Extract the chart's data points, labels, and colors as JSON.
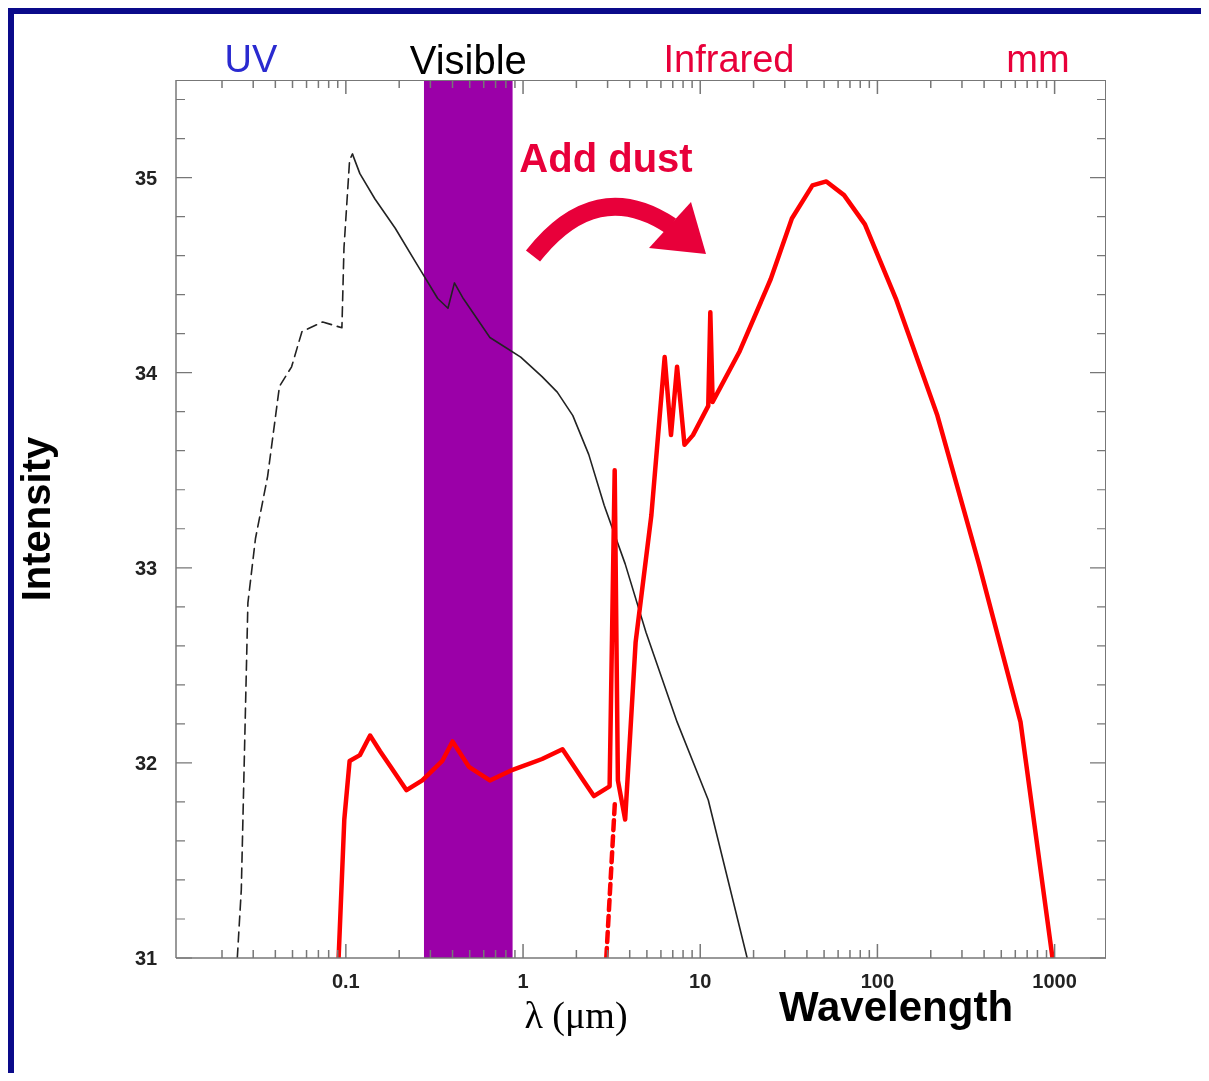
{
  "chart_data": {
    "type": "line",
    "xlabel": "λ (μm)",
    "ylabel": "Intensity",
    "log": "x",
    "xlim": [
      0.011,
      1950
    ],
    "ylim": [
      31,
      35.5
    ],
    "xticks": [
      {
        "value": 0.02,
        "label": null
      },
      {
        "value": 0.03,
        "label": null
      },
      {
        "value": 0.04,
        "label": null
      },
      {
        "value": 0.05,
        "label": null
      },
      {
        "value": 0.06,
        "label": null
      },
      {
        "value": 0.07,
        "label": null
      },
      {
        "value": 0.08,
        "label": null
      },
      {
        "value": 0.09,
        "label": null
      },
      0.1,
      {
        "value": 0.2,
        "label": null
      },
      {
        "value": 0.3,
        "label": null
      },
      {
        "value": 0.4,
        "label": null
      },
      {
        "value": 0.5,
        "label": null
      },
      {
        "value": 0.6,
        "label": null
      },
      {
        "value": 0.7,
        "label": null
      },
      {
        "value": 0.8,
        "label": null
      },
      {
        "value": 0.9,
        "label": null
      },
      1,
      {
        "value": 2,
        "label": null
      },
      {
        "value": 3,
        "label": null
      },
      {
        "value": 4,
        "label": null
      },
      {
        "value": 5,
        "label": null
      },
      {
        "value": 6,
        "label": null
      },
      {
        "value": 7,
        "label": null
      },
      {
        "value": 8,
        "label": null
      },
      {
        "value": 9,
        "label": null
      },
      10,
      {
        "value": 20,
        "label": null
      },
      {
        "value": 30,
        "label": null
      },
      {
        "value": 40,
        "label": null
      },
      {
        "value": 50,
        "label": null
      },
      {
        "value": 60,
        "label": null
      },
      {
        "value": 70,
        "label": null
      },
      {
        "value": 80,
        "label": null
      },
      {
        "value": 90,
        "label": null
      },
      100,
      {
        "value": 200,
        "label": null
      },
      {
        "value": 300,
        "label": null
      },
      {
        "value": 400,
        "label": null
      },
      {
        "value": 500,
        "label": null
      },
      {
        "value": 600,
        "label": null
      },
      {
        "value": 700,
        "label": null
      },
      {
        "value": 800,
        "label": null
      },
      {
        "value": 900,
        "label": null
      },
      1000
    ],
    "yticks": [
      31,
      {
        "value": 31.2,
        "label": null
      },
      {
        "value": 31.4,
        "label": null
      },
      {
        "value": 31.6,
        "label": null
      },
      {
        "value": 31.8,
        "label": null
      },
      32,
      {
        "value": 32.2,
        "label": null
      },
      {
        "value": 32.4,
        "label": null
      },
      {
        "value": 32.6,
        "label": null
      },
      {
        "value": 32.8,
        "label": null
      },
      33,
      {
        "value": 33.2,
        "label": null
      },
      {
        "value": 33.4,
        "label": null
      },
      {
        "value": 33.6,
        "label": null
      },
      {
        "value": 33.8,
        "label": null
      },
      34,
      {
        "value": 34.2,
        "label": null
      },
      {
        "value": 34.4,
        "label": null
      },
      {
        "value": 34.6,
        "label": null
      },
      {
        "value": 34.8,
        "label": null
      },
      35,
      {
        "value": 35.2,
        "label": null
      },
      {
        "value": 35.4,
        "label": null
      }
    ],
    "bands": [
      {
        "axis": "x",
        "from": 0.276,
        "to": 0.873,
        "label": "Visible",
        "color": "#9b00a8"
      }
    ],
    "annotations": [
      "UV",
      "Infrared",
      "mm",
      "Add dust",
      "Wavelength"
    ],
    "series": [
      {
        "color": "#222222",
        "line_style": "dashed",
        "x": [
          0.0244,
          0.0257,
          0.028,
          0.0309,
          0.0362,
          0.0422,
          0.0494,
          0.0565,
          0.074,
          0.095,
          0.0976,
          0.105,
          0.109
        ],
        "values": [
          31.0,
          31.35,
          32.82,
          33.15,
          33.47,
          33.93,
          34.03,
          34.21,
          34.26,
          34.23,
          34.64,
          35.09,
          35.12
        ]
      },
      {
        "color": "#222222",
        "line_style": "solid",
        "x": [
          0.109,
          0.12,
          0.146,
          0.19,
          0.25,
          0.33,
          0.377,
          0.41,
          0.46,
          0.65,
          0.97,
          1.28,
          1.56,
          1.91,
          2.35,
          2.87,
          3.77,
          4.94,
          7.4,
          11.1,
          18.4
        ],
        "values": [
          35.12,
          35.02,
          34.89,
          34.74,
          34.56,
          34.38,
          34.33,
          34.46,
          34.38,
          34.18,
          34.08,
          33.98,
          33.9,
          33.78,
          33.58,
          33.32,
          33.02,
          32.67,
          32.21,
          31.81,
          31.0
        ]
      },
      {
        "color": "#ff0000",
        "line_style": "solid",
        "x": [
          0.091,
          0.098,
          0.105,
          0.12,
          0.137,
          0.156,
          0.179,
          0.22,
          0.27,
          0.35,
          0.4,
          0.495,
          0.65,
          0.85,
          1.28,
          1.67,
          2.19,
          2.51,
          3.08,
          3.29,
          3.43,
          3.77,
          4.32,
          5.3,
          6.3,
          6.84,
          7.4,
          8.15,
          9.1,
          11.1,
          11.4,
          11.75,
          16.7,
          25,
          32.9,
          43,
          51.5,
          64.8,
          85,
          127,
          218,
          374,
          642,
          973
        ],
        "values": [
          31.0,
          31.71,
          32.01,
          32.04,
          32.14,
          32.06,
          31.98,
          31.86,
          31.91,
          32.01,
          32.11,
          31.98,
          31.91,
          31.96,
          32.02,
          32.07,
          31.91,
          31.83,
          31.88,
          33.5,
          31.91,
          31.71,
          32.62,
          33.27,
          34.08,
          33.68,
          34.03,
          33.63,
          33.68,
          33.83,
          34.31,
          33.85,
          34.11,
          34.48,
          34.79,
          34.96,
          34.98,
          34.91,
          34.76,
          34.38,
          33.78,
          33.02,
          32.21,
          31.0
        ]
      },
      {
        "color": "#ff0000",
        "line_style": "dashed",
        "x": [
          2.95,
          3.3
        ],
        "values": [
          31.0,
          31.8
        ]
      }
    ]
  }
}
